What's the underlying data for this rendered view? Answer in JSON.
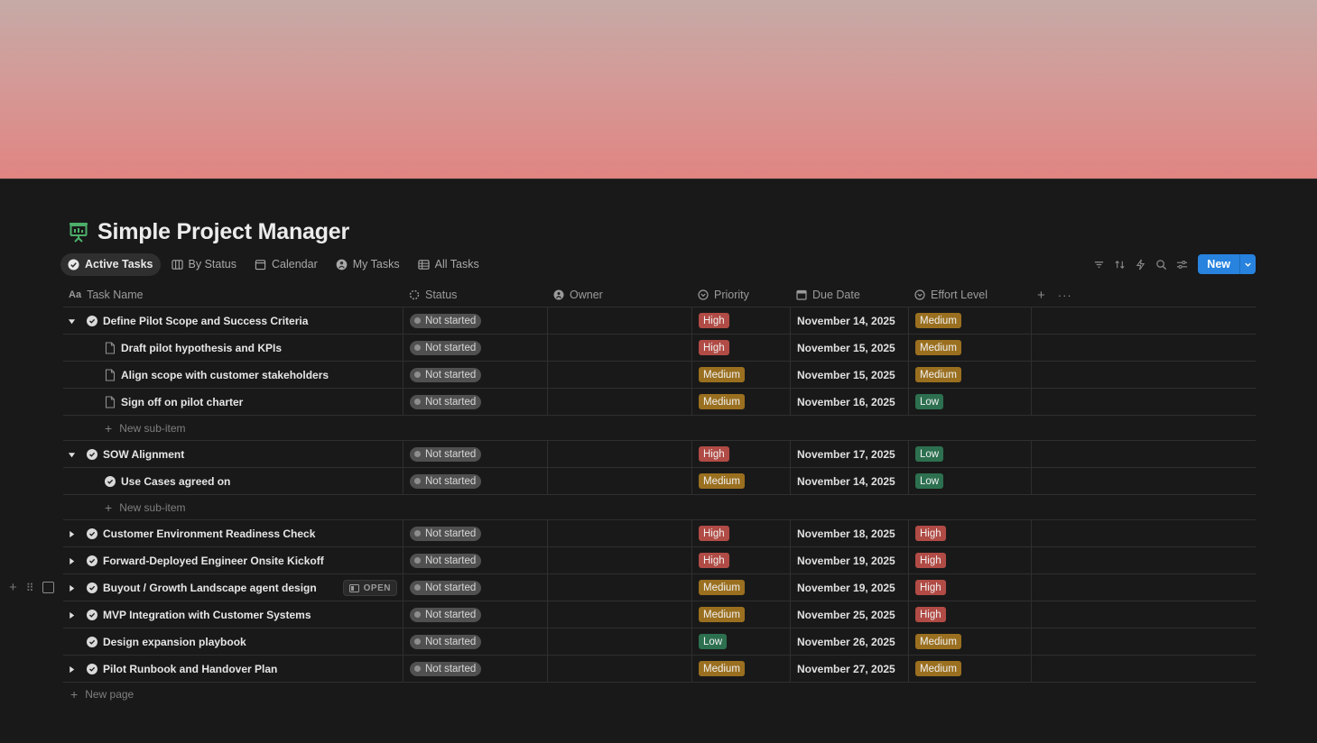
{
  "page": {
    "title": "Simple Project Manager",
    "icon": "presentation-board-icon"
  },
  "views": [
    {
      "label": "Active Tasks",
      "icon": "check-circle-icon",
      "active": true
    },
    {
      "label": "By Status",
      "icon": "board-icon",
      "active": false
    },
    {
      "label": "Calendar",
      "icon": "calendar-icon",
      "active": false
    },
    {
      "label": "My Tasks",
      "icon": "person-icon",
      "active": false
    },
    {
      "label": "All Tasks",
      "icon": "table-icon",
      "active": false
    }
  ],
  "toolbar": {
    "new_label": "New",
    "icons": [
      "filter-icon",
      "sort-icon",
      "lightning-icon",
      "search-icon",
      "settings-sliders-icon",
      "chevron-down-icon"
    ]
  },
  "columns": [
    {
      "label": "Task Name",
      "icon": "text-aa-icon"
    },
    {
      "label": "Status",
      "icon": "status-loader-icon"
    },
    {
      "label": "Owner",
      "icon": "person-icon"
    },
    {
      "label": "Priority",
      "icon": "select-circle-icon"
    },
    {
      "label": "Due Date",
      "icon": "calendar-icon"
    },
    {
      "label": "Effort Level",
      "icon": "select-circle-icon"
    }
  ],
  "rows": [
    {
      "name": "Define Pilot Scope and Success Criteria",
      "level": 0,
      "toggle": "open",
      "status": "Not started",
      "owner": "",
      "priority": "High",
      "due": "November 14, 2025",
      "effort": "Medium"
    },
    {
      "name": "Draft pilot hypothesis and KPIs",
      "level": 1,
      "toggle": "none",
      "status": "Not started",
      "owner": "",
      "priority": "High",
      "due": "November 15, 2025",
      "effort": "Medium"
    },
    {
      "name": "Align scope with customer stakeholders",
      "level": 1,
      "toggle": "none",
      "status": "Not started",
      "owner": "",
      "priority": "Medium",
      "due": "November 15, 2025",
      "effort": "Medium"
    },
    {
      "name": "Sign off on pilot charter",
      "level": 1,
      "toggle": "none",
      "status": "Not started",
      "owner": "",
      "priority": "Medium",
      "due": "November 16, 2025",
      "effort": "Low"
    },
    {
      "type": "subadd",
      "label": "New sub-item"
    },
    {
      "name": "SOW Alignment",
      "level": 0,
      "toggle": "open",
      "status": "Not started",
      "owner": "",
      "priority": "High",
      "due": "November 17, 2025",
      "effort": "Low"
    },
    {
      "name": "Use Cases agreed on",
      "level": 1,
      "toggle": "none",
      "check": true,
      "status": "Not started",
      "owner": "",
      "priority": "Medium",
      "due": "November 14, 2025",
      "effort": "Low"
    },
    {
      "type": "subadd",
      "label": "New sub-item"
    },
    {
      "name": "Customer Environment Readiness Check",
      "level": 0,
      "toggle": "closed",
      "status": "Not started",
      "owner": "",
      "priority": "High",
      "due": "November 18, 2025",
      "effort": "High"
    },
    {
      "name": "Forward-Deployed Engineer Onsite Kickoff",
      "level": 0,
      "toggle": "closed",
      "status": "Not started",
      "owner": "",
      "priority": "High",
      "due": "November 19, 2025",
      "effort": "High"
    },
    {
      "name": "Buyout / Growth Landscape agent design",
      "level": 0,
      "toggle": "closed",
      "status": "Not started",
      "owner": "",
      "priority": "Medium",
      "due": "November 19, 2025",
      "effort": "High",
      "hover": true,
      "open_label": "OPEN"
    },
    {
      "name": "MVP Integration with Customer Systems",
      "level": 0,
      "toggle": "closed",
      "status": "Not started",
      "owner": "",
      "priority": "Medium",
      "due": "November 25, 2025",
      "effort": "High"
    },
    {
      "name": "Design expansion playbook",
      "level": 0,
      "toggle": "none",
      "status": "Not started",
      "owner": "",
      "priority": "Low",
      "due": "November 26, 2025",
      "effort": "Medium"
    },
    {
      "name": "Pilot Runbook and Handover Plan",
      "level": 0,
      "toggle": "closed",
      "status": "Not started",
      "owner": "",
      "priority": "Medium",
      "due": "November 27, 2025",
      "effort": "Medium"
    }
  ],
  "footer": {
    "new_page_label": "New page"
  },
  "colors": {
    "accent": "#2783de",
    "high": "#b14b45",
    "medium": "#9a6f1f",
    "low": "#2d7050",
    "background": "#191919"
  }
}
